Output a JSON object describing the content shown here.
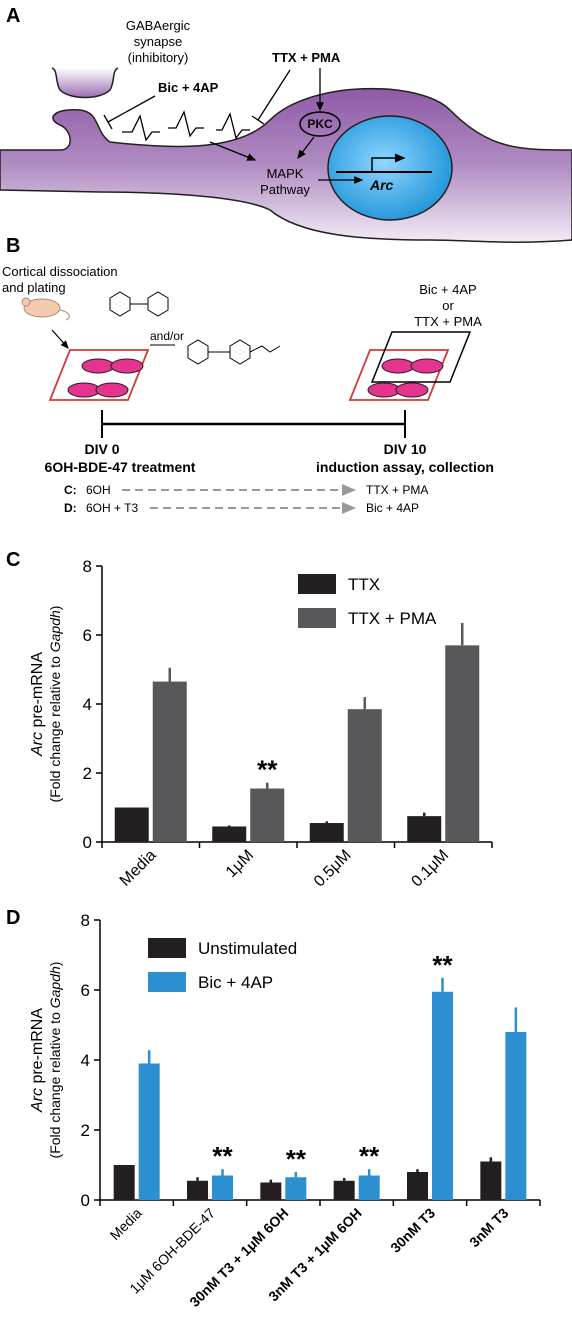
{
  "panel_a": {
    "letter": "A",
    "synapse_label": [
      "GABAergic",
      "synapse",
      "(inhibitory)"
    ],
    "bic_label": "Bic + 4AP",
    "ttx_label": "TTX + PMA",
    "pkc_label": "PKC",
    "mapk_label": [
      "MAPK",
      "Pathway"
    ],
    "arc_label": "Arc"
  },
  "panel_b": {
    "letter": "B",
    "dissociation_label": [
      "Cortical dissociation",
      "and plating"
    ],
    "andor_label": "and/or",
    "right_label": [
      "Bic + 4AP",
      "or",
      "TTX + PMA"
    ],
    "div0": "DIV 0",
    "div0_sub": "6OH-BDE-47 treatment",
    "div10": "DIV 10",
    "div10_sub": "induction assay, collection",
    "row_c_key": "C:",
    "row_c_left": "6OH",
    "row_c_right": "TTX + PMA",
    "row_d_key": "D:",
    "row_d_left": "6OH + T3",
    "row_d_right": "Bic + 4AP"
  },
  "colors": {
    "black_bar": "#231f20",
    "gray_bar": "#58585a",
    "blue_bar": "#2b8fd0",
    "membrane": "#9c6fb1",
    "nucleus": "#33aaee",
    "dish": "#e5348f",
    "frame": "#d23a3a"
  },
  "chart_data": [
    {
      "panel": "C",
      "type": "bar",
      "ylabel_italic": "Arc",
      "ylabel_rest": " pre-mRNA",
      "ylabel2_pre": "(Fold change relative to ",
      "ylabel2_italic": "Gapdh",
      "ylabel2_post": ")",
      "ylim": [
        0,
        8
      ],
      "yticks": [
        "0",
        "2",
        "4",
        "6",
        "8"
      ],
      "categories": [
        "Media",
        "1μM",
        "0.5μM",
        "0.1μM"
      ],
      "series": [
        {
          "name": "TTX",
          "color": "#231f20",
          "values": [
            1.0,
            0.45,
            0.55,
            0.75
          ],
          "errors": [
            0,
            0.03,
            0.05,
            0.1
          ]
        },
        {
          "name": "TTX + PMA",
          "color": "#58585a",
          "values": [
            4.65,
            1.55,
            3.85,
            5.7
          ],
          "errors": [
            0.4,
            0.17,
            0.35,
            0.65
          ]
        }
      ],
      "annotations": [
        {
          "category": 1,
          "series": 1,
          "text": "**"
        }
      ],
      "legend": "top-right"
    },
    {
      "panel": "D",
      "type": "bar",
      "ylabel_italic": "Arc",
      "ylabel_rest": " pre-mRNA",
      "ylabel2_pre": "(Fold change relative to ",
      "ylabel2_italic": "Gapdh",
      "ylabel2_post": ")",
      "ylim": [
        0,
        8
      ],
      "yticks": [
        "0",
        "2",
        "4",
        "6",
        "8"
      ],
      "categories": [
        "Media",
        "1μM 6OH-BDE-47",
        "30nM T3 + 1μM 6OH",
        "3nM T3 + 1μM 6OH",
        "30nM T3",
        "3nM T3"
      ],
      "series": [
        {
          "name": "Unstimulated",
          "color": "#231f20",
          "values": [
            1.0,
            0.55,
            0.5,
            0.55,
            0.8,
            1.1
          ],
          "errors": [
            0,
            0.1,
            0.08,
            0.08,
            0.08,
            0.12
          ]
        },
        {
          "name": "Bic + 4AP",
          "color": "#2b8fd0",
          "values": [
            3.9,
            0.7,
            0.65,
            0.7,
            5.95,
            4.8
          ],
          "errors": [
            0.38,
            0.18,
            0.15,
            0.18,
            0.4,
            0.7
          ]
        }
      ],
      "annotations": [
        {
          "category": 1,
          "series": 1,
          "text": "**"
        },
        {
          "category": 2,
          "series": 1,
          "text": "**"
        },
        {
          "category": 3,
          "series": 1,
          "text": "**"
        },
        {
          "category": 4,
          "series": 1,
          "text": "**"
        }
      ],
      "legend": "top-left"
    }
  ]
}
